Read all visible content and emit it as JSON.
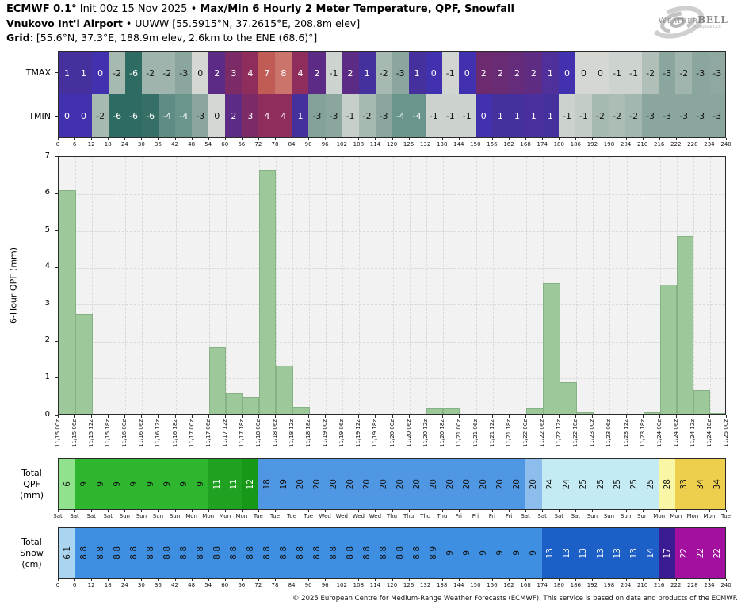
{
  "header": {
    "line1": {
      "bold1": "ECMWF 0.1°",
      "normal1": " Init 00z 15 Nov 2025 • ",
      "bold2": "Max/Min 6 Hourly 2 Meter Temperature, QPF, Snowfall"
    },
    "line2": {
      "bold": "Vnukovo Int'l Airport",
      "normal": " • UUWW [55.5915°N, 37.2615°E, 208.8m elev]"
    },
    "line3": {
      "bold": "Grid",
      "normal": ": [55.6°N, 37.3°E, 188.9m elev, 2.6km to the ENE (68.6)°]"
    }
  },
  "logo": {
    "brand_part1": "Weather",
    "brand_part2": "BELL",
    "sub": "Analytics LLC"
  },
  "labels": {
    "tmax": "TMAX",
    "tmin": "TMIN",
    "qpf_ylabel": "6-Hour QPF (mm)",
    "total_qpf_line1": "Total",
    "total_qpf_line2": "QPF",
    "total_qpf_line3": "(mm)",
    "total_snow_line1": "Total",
    "total_snow_line2": "Snow",
    "total_snow_line3": "(cm)"
  },
  "footer": "© 2025 European Centre for Medium-Range Weather Forecasts (ECMWF). This service is based on data and products of the ECMWF.",
  "axis": {
    "hours": [
      "0",
      "6",
      "12",
      "18",
      "24",
      "30",
      "36",
      "42",
      "48",
      "54",
      "60",
      "66",
      "72",
      "78",
      "84",
      "90",
      "96",
      "102",
      "108",
      "114",
      "120",
      "126",
      "132",
      "138",
      "144",
      "150",
      "156",
      "162",
      "168",
      "174",
      "180",
      "186",
      "192",
      "198",
      "204",
      "210",
      "216",
      "222",
      "228",
      "234",
      "240"
    ],
    "times": [
      "11/15 00z",
      "11/15 06z",
      "11/15 12z",
      "11/15 18z",
      "11/16 00z",
      "11/16 06z",
      "11/16 12z",
      "11/16 18z",
      "11/17 00z",
      "11/17 06z",
      "11/17 12z",
      "11/17 18z",
      "11/18 00z",
      "11/18 06z",
      "11/18 12z",
      "11/18 18z",
      "11/19 00z",
      "11/19 06z",
      "11/19 12z",
      "11/19 18z",
      "11/20 00z",
      "11/20 06z",
      "11/20 12z",
      "11/20 18z",
      "11/21 00z",
      "11/21 06z",
      "11/21 12z",
      "11/21 18z",
      "11/22 00z",
      "11/22 06z",
      "11/22 12z",
      "11/22 18z",
      "11/23 00z",
      "11/23 06z",
      "11/23 12z",
      "11/23 18z",
      "11/24 00z",
      "11/24 06z",
      "11/24 12z",
      "11/24 18z",
      "11/25 00z"
    ],
    "days": [
      "Sat",
      "Sat",
      "Sat",
      "Sat",
      "Sun",
      "Sun",
      "Sun",
      "Sun",
      "Mon",
      "Mon",
      "Mon",
      "Mon",
      "Tue",
      "Tue",
      "Tue",
      "Tue",
      "Wed",
      "Wed",
      "Wed",
      "Wed",
      "Thu",
      "Thu",
      "Thu",
      "Thu",
      "Fri",
      "Fri",
      "Fri",
      "Fri",
      "Sat",
      "Sat",
      "Sat",
      "Sat",
      "Sun",
      "Sun",
      "Sun",
      "Sun",
      "Mon",
      "Mon",
      "Mon",
      "Mon",
      "Tue"
    ]
  },
  "chart_data": [
    {
      "type": "heatmap",
      "name": "max-min-2m-temperature",
      "rows": [
        {
          "label": "TMAX",
          "values": [
            1,
            1,
            0,
            -2,
            -6,
            -2,
            -2,
            -3,
            0,
            2,
            3,
            4,
            7,
            8,
            4,
            2,
            -1,
            2,
            1,
            -2,
            -3,
            1,
            0,
            -1,
            0,
            2,
            2,
            2,
            2,
            1,
            0,
            0,
            0,
            -1,
            -1,
            -2,
            -3,
            -2,
            -3,
            -3
          ],
          "colors": [
            "#46309e",
            "#46309e",
            "#4131af",
            "#a7bab2",
            "#2e6b62",
            "#9eb4ac",
            "#9eb4ac",
            "#8aa69e",
            "#d5d7d3",
            "#5c2b85",
            "#7c2b66",
            "#8f2d5c",
            "#c05b55",
            "#cb746c",
            "#8f2d5c",
            "#5c2b85",
            "#cdd3cf",
            "#5c2b85",
            "#46309e",
            "#a7bab2",
            "#8aa69e",
            "#46309e",
            "#4131af",
            "#d2d6d2",
            "#4131af",
            "#6e2a6e",
            "#692b74",
            "#642c7b",
            "#5e2c83",
            "#50309b",
            "#4131af",
            "#d5d7d3",
            "#d5d7d3",
            "#cdd3cf",
            "#cdd3cf",
            "#b0c0b9",
            "#8aa69e",
            "#a0b5ae",
            "#8aa69e",
            "#8fa9a2"
          ],
          "text_colors": [
            "w",
            "w",
            "w",
            "b",
            "w",
            "b",
            "b",
            "b",
            "b",
            "w",
            "w",
            "w",
            "w",
            "w",
            "w",
            "w",
            "b",
            "w",
            "w",
            "b",
            "b",
            "w",
            "w",
            "b",
            "w",
            "w",
            "w",
            "w",
            "w",
            "w",
            "w",
            "b",
            "b",
            "b",
            "b",
            "b",
            "b",
            "b",
            "b",
            "b"
          ]
        },
        {
          "label": "TMIN",
          "values": [
            0,
            0,
            -2,
            -6,
            -6,
            -6,
            -4,
            -4,
            -3,
            0,
            2,
            3,
            4,
            4,
            1,
            -3,
            -3,
            -1,
            -2,
            -3,
            -4,
            -4,
            -1,
            -1,
            -1,
            0,
            1,
            1,
            1,
            1,
            -1,
            -1,
            -2,
            -2,
            -2,
            -3,
            -3,
            -3,
            -3,
            -3
          ],
          "colors": [
            "#4131af",
            "#4131af",
            "#a7bab2",
            "#2e6b62",
            "#2e6b62",
            "#356f66",
            "#5f8d85",
            "#6a958d",
            "#8aa69e",
            "#d5d7d3",
            "#5c2b85",
            "#7c2b66",
            "#8f2d5c",
            "#8f2d5c",
            "#46309e",
            "#84a29a",
            "#8aa69e",
            "#c6cfc9",
            "#a7bab2",
            "#8aa69e",
            "#6a958d",
            "#6a958d",
            "#ccd3ce",
            "#ccd3ce",
            "#ccd3ce",
            "#4131af",
            "#46309e",
            "#46309e",
            "#4a2f9f",
            "#46309e",
            "#ccd3ce",
            "#c3cdc6",
            "#a7bab2",
            "#abbdb5",
            "#a2b7af",
            "#8aa69e",
            "#8aa69e",
            "#8aa69e",
            "#8aa69e",
            "#8aa69e"
          ],
          "text_colors": [
            "w",
            "w",
            "b",
            "w",
            "w",
            "w",
            "w",
            "w",
            "b",
            "b",
            "w",
            "w",
            "w",
            "w",
            "w",
            "b",
            "b",
            "b",
            "b",
            "b",
            "w",
            "w",
            "b",
            "b",
            "b",
            "w",
            "w",
            "w",
            "w",
            "w",
            "b",
            "b",
            "b",
            "b",
            "b",
            "b",
            "b",
            "b",
            "b",
            "b"
          ]
        }
      ]
    },
    {
      "type": "bar",
      "name": "six-hour-qpf",
      "ylabel": "6-Hour QPF (mm)",
      "ylim": [
        0,
        7
      ],
      "yticks": [
        0,
        1,
        2,
        3,
        4,
        5,
        6,
        7
      ],
      "bar_color": "#9cc89a",
      "grid": true,
      "values": [
        6.05,
        2.7,
        0,
        0,
        0,
        0,
        0,
        0,
        0,
        1.8,
        0.55,
        0.45,
        6.6,
        1.3,
        0.2,
        0,
        0,
        0,
        0,
        0,
        0,
        0,
        0.15,
        0.15,
        0,
        0,
        0,
        0,
        0.15,
        3.55,
        0.85,
        0.05,
        0,
        0,
        0,
        0.05,
        3.5,
        4.8,
        0.65,
        0.03
      ]
    },
    {
      "type": "heatmap",
      "name": "total-qpf",
      "values": [
        6,
        9,
        9,
        9,
        9,
        9,
        9,
        9,
        9,
        11,
        11,
        12,
        18,
        19,
        20,
        20,
        20,
        20,
        20,
        20,
        20,
        20,
        20,
        20,
        20,
        20,
        20,
        20,
        20,
        24,
        24,
        25,
        25,
        25,
        25,
        25,
        28,
        33,
        34,
        34
      ],
      "colors": [
        "#90e38c",
        "#2eb62e",
        "#2eb62e",
        "#2eb62e",
        "#2eb62e",
        "#2eb62e",
        "#2eb62e",
        "#2eb62e",
        "#2eb62e",
        "#21a121",
        "#21a121",
        "#189818",
        "#4f97e3",
        "#4f97e3",
        "#4f97e3",
        "#4f97e3",
        "#4f97e3",
        "#4f97e3",
        "#4f97e3",
        "#4f97e3",
        "#4f97e3",
        "#4f97e3",
        "#4f97e3",
        "#4f97e3",
        "#4f97e3",
        "#4f97e3",
        "#4f97e3",
        "#4f97e3",
        "#8cbdec",
        "#c4ebf4",
        "#c4ebf4",
        "#c4ebf4",
        "#c4ebf4",
        "#c4ebf4",
        "#c4ebf4",
        "#c4ebf4",
        "#f9f6a6",
        "#eecf4d",
        "#eecf4d",
        "#eecf4d"
      ],
      "text_colors": [
        "b",
        "b",
        "b",
        "b",
        "b",
        "b",
        "b",
        "b",
        "b",
        "w",
        "w",
        "w",
        "b",
        "b",
        "b",
        "b",
        "b",
        "b",
        "b",
        "b",
        "b",
        "b",
        "b",
        "b",
        "b",
        "b",
        "b",
        "b",
        "b",
        "b",
        "b",
        "b",
        "b",
        "b",
        "b",
        "b",
        "b",
        "b",
        "b",
        "b"
      ]
    },
    {
      "type": "heatmap",
      "name": "total-snow",
      "values": [
        6.1,
        8.8,
        8.8,
        8.8,
        8.8,
        8.8,
        8.8,
        8.8,
        8.8,
        8.8,
        8.8,
        8.8,
        8.8,
        8.8,
        8.8,
        8.8,
        8.8,
        8.8,
        8.8,
        8.8,
        8.8,
        8.8,
        8.9,
        9,
        9,
        9,
        9,
        9,
        9,
        13,
        13,
        13,
        13,
        13,
        13,
        14,
        17,
        22,
        22,
        22
      ],
      "colors": [
        "#a9d5f1",
        "#3e8ee2",
        "#3e8ee2",
        "#3e8ee2",
        "#3e8ee2",
        "#3e8ee2",
        "#3e8ee2",
        "#3e8ee2",
        "#3e8ee2",
        "#3e8ee2",
        "#3e8ee2",
        "#3e8ee2",
        "#3e8ee2",
        "#3e8ee2",
        "#3e8ee2",
        "#3e8ee2",
        "#3e8ee2",
        "#3e8ee2",
        "#3e8ee2",
        "#3e8ee2",
        "#3e8ee2",
        "#3e8ee2",
        "#3e8ee2",
        "#3e8ee2",
        "#3e8ee2",
        "#3e8ee2",
        "#3e8ee2",
        "#3e8ee2",
        "#3e8ee2",
        "#1c5fc6",
        "#1c5fc6",
        "#1c5fc6",
        "#1c5fc6",
        "#1c5fc6",
        "#1c5fc6",
        "#1c5fc6",
        "#3a1b92",
        "#a310a0",
        "#a310a0",
        "#a310a0"
      ],
      "text_colors": [
        "b",
        "b",
        "b",
        "b",
        "b",
        "b",
        "b",
        "b",
        "b",
        "b",
        "b",
        "b",
        "b",
        "b",
        "b",
        "b",
        "b",
        "b",
        "b",
        "b",
        "b",
        "b",
        "b",
        "b",
        "b",
        "b",
        "b",
        "b",
        "b",
        "w",
        "w",
        "w",
        "w",
        "w",
        "w",
        "w",
        "w",
        "w",
        "w",
        "w"
      ]
    }
  ]
}
